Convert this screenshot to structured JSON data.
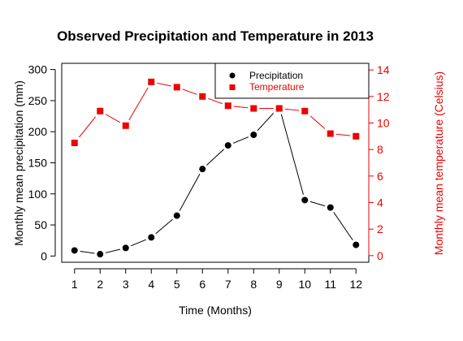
{
  "chart_data": {
    "type": "line",
    "title": "Observed Precipitation and Temperature in 2013",
    "xlabel": "Time (Months)",
    "ylabel_left": "Monthly mean precipitation (mm)",
    "ylabel_right": "Monthly mean temperature (Celsius)",
    "x": [
      1,
      2,
      3,
      4,
      5,
      6,
      7,
      8,
      9,
      10,
      11,
      12
    ],
    "x_ticks": [
      "1",
      "2",
      "3",
      "4",
      "5",
      "6",
      "7",
      "8",
      "9",
      "10",
      "11",
      "12"
    ],
    "xlim": [
      0.5,
      12.5
    ],
    "ylim_left": [
      -10,
      310
    ],
    "yticks_left": [
      0,
      50,
      100,
      150,
      200,
      250,
      300
    ],
    "ylim_right": [
      -0.5,
      14.5
    ],
    "yticks_right": [
      0,
      2,
      4,
      6,
      8,
      10,
      12,
      14
    ],
    "grid": false,
    "legend_position": "top-right",
    "series": [
      {
        "name": "Precipitation",
        "axis": "left",
        "marker": "circle",
        "color": "#000000",
        "values": [
          9,
          3,
          13,
          30,
          65,
          140,
          178,
          195,
          240,
          90,
          78,
          18
        ]
      },
      {
        "name": "Temperature",
        "axis": "right",
        "marker": "square",
        "color": "#ee0000",
        "values": [
          8.5,
          10.9,
          9.8,
          13.1,
          12.7,
          12.0,
          11.3,
          11.1,
          11.1,
          10.9,
          9.2,
          9.0
        ]
      }
    ]
  }
}
